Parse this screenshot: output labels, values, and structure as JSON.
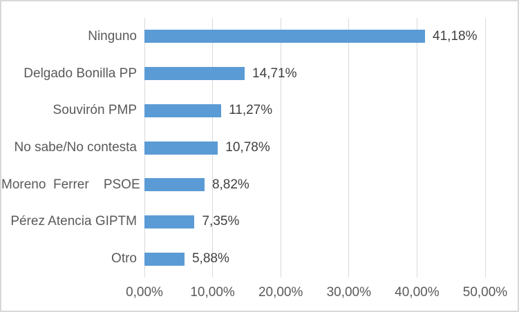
{
  "chart_data": {
    "type": "bar",
    "orientation": "horizontal",
    "title": "",
    "xlabel": "",
    "ylabel": "",
    "categories": [
      "Ninguno",
      "Delgado Bonilla PP",
      "Souvirón PMP",
      "No sabe/No contesta",
      "Moreno  Ferrer    PSOE",
      "Pérez Atencia GIPTM",
      "Otro"
    ],
    "values": [
      41.18,
      14.71,
      11.27,
      10.78,
      8.82,
      7.35,
      5.88
    ],
    "value_labels": [
      "41,18%",
      "14,71%",
      "11,27%",
      "10,78%",
      "8,82%",
      "7,35%",
      "5,88%"
    ],
    "x_ticks": [
      0,
      10,
      20,
      30,
      40,
      50
    ],
    "x_tick_labels": [
      "0,00%",
      "10,00%",
      "20,00%",
      "30,00%",
      "40,00%",
      "50,00%"
    ],
    "xlim": [
      0,
      50
    ],
    "grid": true,
    "legend": false
  },
  "colors": {
    "bar": "#5B9BD5",
    "gridline": "#D9D9D9",
    "axis_text": "#595959",
    "data_label_text": "#404040",
    "border": "#D8D8D8",
    "background": "#FFFFFF"
  }
}
